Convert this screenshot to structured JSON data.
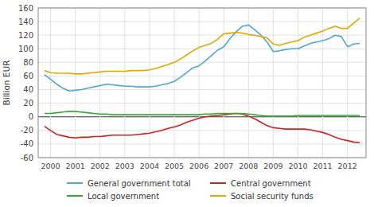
{
  "chart_data": {
    "type": "line",
    "ylabel": "Billion EUR",
    "x": [
      1999.75,
      2000.0,
      2000.25,
      2000.5,
      2000.75,
      2001.0,
      2001.25,
      2001.5,
      2001.75,
      2002.0,
      2002.25,
      2002.5,
      2002.75,
      2003.0,
      2003.25,
      2003.5,
      2003.75,
      2004.0,
      2004.25,
      2004.5,
      2004.75,
      2005.0,
      2005.25,
      2005.5,
      2005.75,
      2006.0,
      2006.25,
      2006.5,
      2006.75,
      2007.0,
      2007.25,
      2007.5,
      2007.75,
      2008.0,
      2008.25,
      2008.5,
      2008.75,
      2009.0,
      2009.25,
      2009.5,
      2009.75,
      2010.0,
      2010.25,
      2010.5,
      2010.75,
      2011.0,
      2011.25,
      2011.5,
      2011.75,
      2012.0,
      2012.25,
      2012.5
    ],
    "series": [
      {
        "name": "General government total",
        "color": "#4fa8d8",
        "values": [
          62,
          55,
          48,
          42,
          38,
          39,
          40,
          42,
          44,
          46,
          48,
          47,
          46,
          45,
          45,
          44,
          44,
          44,
          45,
          47,
          49,
          52,
          58,
          65,
          72,
          75,
          82,
          90,
          98,
          103,
          115,
          125,
          133,
          135,
          128,
          120,
          110,
          96,
          97,
          99,
          100,
          100,
          104,
          108,
          110,
          112,
          115,
          120,
          118,
          103,
          107,
          108
        ]
      },
      {
        "name": "Central government",
        "color": "#cc2222",
        "values": [
          -14,
          -20,
          -26,
          -28,
          -30,
          -31,
          -30,
          -30,
          -29,
          -29,
          -28,
          -27,
          -27,
          -27,
          -27,
          -26,
          -25,
          -24,
          -22,
          -20,
          -17,
          -15,
          -12,
          -8,
          -5,
          -2,
          0,
          1,
          2,
          3,
          4,
          5,
          4,
          1,
          -3,
          -8,
          -13,
          -16,
          -17,
          -18,
          -18,
          -18,
          -18,
          -19,
          -21,
          -23,
          -26,
          -30,
          -33,
          -35,
          -37,
          -38
        ]
      },
      {
        "name": "Local government",
        "color": "#33aa33",
        "values": [
          5,
          5,
          6,
          7,
          8,
          8,
          7,
          6,
          5,
          4,
          4,
          3,
          3,
          3,
          3,
          3,
          3,
          3,
          3,
          3,
          3,
          3,
          3,
          3,
          3,
          3,
          4,
          4,
          5,
          5,
          5,
          5,
          5,
          4,
          3,
          2,
          1,
          1,
          1,
          1,
          1,
          2,
          2,
          2,
          2,
          2,
          2,
          2,
          2,
          2,
          2,
          2
        ]
      },
      {
        "name": "Social security funds",
        "color": "#ddaa00",
        "values": [
          68,
          65,
          64,
          64,
          64,
          63,
          63,
          64,
          65,
          66,
          67,
          67,
          67,
          67,
          68,
          68,
          68,
          69,
          71,
          74,
          77,
          80,
          85,
          91,
          97,
          102,
          105,
          108,
          114,
          122,
          123,
          124,
          123,
          121,
          120,
          118,
          116,
          107,
          105,
          108,
          110,
          112,
          117,
          120,
          123,
          126,
          130,
          133,
          130,
          130,
          138,
          145
        ]
      }
    ],
    "xlim": [
      1999.5,
      2012.75
    ],
    "xticks": [
      2000,
      2001,
      2002,
      2003,
      2004,
      2005,
      2006,
      2007,
      2008,
      2009,
      2010,
      2011,
      2012
    ],
    "ylim": [
      -60,
      160
    ],
    "yticks": [
      -60,
      -40,
      -20,
      0,
      20,
      40,
      60,
      80,
      100,
      120,
      140,
      160
    ],
    "grid": true,
    "legend": "bottom"
  }
}
